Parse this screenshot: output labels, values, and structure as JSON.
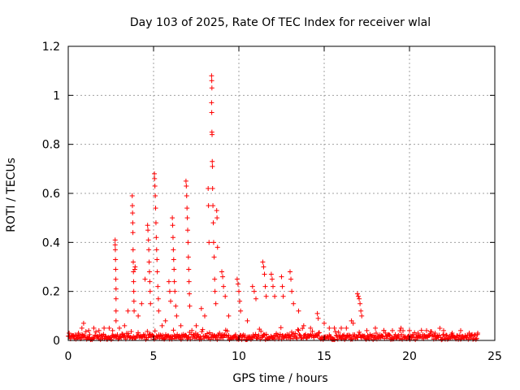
{
  "chart_data": {
    "type": "scatter",
    "title": "Day 103 of 2025, Rate Of TEC Index for receiver wlal",
    "xlabel": "GPS time / hours",
    "ylabel": "ROTI / TECUs",
    "xlim": [
      0,
      25
    ],
    "ylim": [
      0,
      1.2
    ],
    "xticks": [
      0,
      5,
      10,
      15,
      20,
      25
    ],
    "yticks": [
      0,
      0.2,
      0.4,
      0.6,
      0.8,
      1.0,
      1.2
    ],
    "xtick_labels": [
      "0",
      "5",
      "10",
      "15",
      "20",
      "25"
    ],
    "ytick_labels": [
      "0",
      "0.2",
      "0.4",
      "0.6",
      "0.8",
      "1",
      "1.2"
    ],
    "grid": true,
    "marker": "plus",
    "color": "#ff0000",
    "series": [
      {
        "points": [
          [
            0.05,
            0.03
          ],
          [
            0.3,
            0.02
          ],
          [
            0.6,
            0.03
          ],
          [
            0.8,
            0.05
          ],
          [
            0.9,
            0.07
          ],
          [
            1.2,
            0.04
          ],
          [
            1.5,
            0.05
          ],
          [
            1.8,
            0.04
          ],
          [
            2.1,
            0.05
          ],
          [
            2.4,
            0.05
          ],
          [
            2.6,
            0.04
          ],
          [
            2.75,
            0.41
          ],
          [
            2.75,
            0.39
          ],
          [
            2.76,
            0.37
          ],
          [
            2.77,
            0.33
          ],
          [
            2.78,
            0.29
          ],
          [
            2.79,
            0.25
          ],
          [
            2.8,
            0.21
          ],
          [
            2.8,
            0.17
          ],
          [
            2.8,
            0.12
          ],
          [
            2.8,
            0.08
          ],
          [
            3.0,
            0.05
          ],
          [
            3.3,
            0.06
          ],
          [
            3.5,
            0.12
          ],
          [
            3.75,
            0.59
          ],
          [
            3.76,
            0.55
          ],
          [
            3.77,
            0.52
          ],
          [
            3.78,
            0.48
          ],
          [
            3.79,
            0.44
          ],
          [
            3.8,
            0.37
          ],
          [
            3.81,
            0.32
          ],
          [
            3.82,
            0.28
          ],
          [
            3.83,
            0.24
          ],
          [
            3.84,
            0.2
          ],
          [
            3.85,
            0.16
          ],
          [
            3.86,
            0.12
          ],
          [
            3.9,
            0.29
          ],
          [
            3.92,
            0.3
          ],
          [
            4.1,
            0.1
          ],
          [
            4.3,
            0.15
          ],
          [
            4.5,
            0.25
          ],
          [
            4.65,
            0.47
          ],
          [
            4.67,
            0.45
          ],
          [
            4.7,
            0.41
          ],
          [
            4.72,
            0.37
          ],
          [
            4.74,
            0.32
          ],
          [
            4.76,
            0.28
          ],
          [
            4.78,
            0.24
          ],
          [
            4.8,
            0.2
          ],
          [
            4.82,
            0.15
          ],
          [
            5.05,
            0.68
          ],
          [
            5.06,
            0.66
          ],
          [
            5.08,
            0.63
          ],
          [
            5.1,
            0.59
          ],
          [
            5.12,
            0.54
          ],
          [
            5.14,
            0.48
          ],
          [
            5.16,
            0.42
          ],
          [
            5.18,
            0.37
          ],
          [
            5.2,
            0.33
          ],
          [
            5.22,
            0.28
          ],
          [
            5.25,
            0.22
          ],
          [
            5.28,
            0.17
          ],
          [
            5.3,
            0.12
          ],
          [
            5.5,
            0.06
          ],
          [
            5.7,
            0.08
          ],
          [
            5.9,
            0.24
          ],
          [
            5.95,
            0.2
          ],
          [
            6.0,
            0.16
          ],
          [
            6.1,
            0.5
          ],
          [
            6.12,
            0.47
          ],
          [
            6.14,
            0.42
          ],
          [
            6.16,
            0.37
          ],
          [
            6.18,
            0.33
          ],
          [
            6.2,
            0.29
          ],
          [
            6.22,
            0.24
          ],
          [
            6.25,
            0.2
          ],
          [
            6.3,
            0.14
          ],
          [
            6.35,
            0.1
          ],
          [
            6.6,
            0.06
          ],
          [
            6.9,
            0.65
          ],
          [
            6.92,
            0.63
          ],
          [
            6.94,
            0.59
          ],
          [
            6.96,
            0.54
          ],
          [
            6.98,
            0.5
          ],
          [
            7.0,
            0.45
          ],
          [
            7.02,
            0.4
          ],
          [
            7.04,
            0.34
          ],
          [
            7.06,
            0.29
          ],
          [
            7.08,
            0.24
          ],
          [
            7.1,
            0.19
          ],
          [
            7.12,
            0.14
          ],
          [
            7.5,
            0.06
          ],
          [
            7.8,
            0.13
          ],
          [
            8.0,
            0.1
          ],
          [
            8.2,
            0.62
          ],
          [
            8.22,
            0.55
          ],
          [
            8.25,
            0.4
          ],
          [
            8.4,
            1.08
          ],
          [
            8.41,
            1.06
          ],
          [
            8.42,
            1.03
          ],
          [
            8.4,
            0.97
          ],
          [
            8.41,
            0.93
          ],
          [
            8.42,
            0.85
          ],
          [
            8.43,
            0.84
          ],
          [
            8.44,
            0.73
          ],
          [
            8.45,
            0.71
          ],
          [
            8.46,
            0.62
          ],
          [
            8.48,
            0.55
          ],
          [
            8.5,
            0.48
          ],
          [
            8.52,
            0.4
          ],
          [
            8.55,
            0.34
          ],
          [
            8.58,
            0.25
          ],
          [
            8.6,
            0.2
          ],
          [
            8.65,
            0.15
          ],
          [
            8.7,
            0.53
          ],
          [
            8.72,
            0.5
          ],
          [
            8.75,
            0.38
          ],
          [
            9.0,
            0.28
          ],
          [
            9.05,
            0.26
          ],
          [
            9.1,
            0.22
          ],
          [
            9.2,
            0.18
          ],
          [
            9.4,
            0.1
          ],
          [
            9.9,
            0.25
          ],
          [
            9.95,
            0.23
          ],
          [
            10.0,
            0.2
          ],
          [
            10.05,
            0.16
          ],
          [
            10.1,
            0.12
          ],
          [
            10.5,
            0.08
          ],
          [
            10.8,
            0.22
          ],
          [
            10.9,
            0.2
          ],
          [
            11.0,
            0.17
          ],
          [
            11.4,
            0.32
          ],
          [
            11.45,
            0.3
          ],
          [
            11.5,
            0.27
          ],
          [
            11.55,
            0.22
          ],
          [
            11.6,
            0.18
          ],
          [
            11.9,
            0.27
          ],
          [
            11.95,
            0.25
          ],
          [
            12.0,
            0.22
          ],
          [
            12.1,
            0.18
          ],
          [
            12.5,
            0.26
          ],
          [
            12.55,
            0.22
          ],
          [
            12.6,
            0.18
          ],
          [
            13.0,
            0.28
          ],
          [
            13.05,
            0.25
          ],
          [
            13.1,
            0.2
          ],
          [
            13.2,
            0.15
          ],
          [
            13.5,
            0.12
          ],
          [
            13.8,
            0.06
          ],
          [
            14.2,
            0.05
          ],
          [
            14.6,
            0.11
          ],
          [
            14.65,
            0.09
          ],
          [
            15.0,
            0.07
          ],
          [
            15.3,
            0.05
          ],
          [
            15.6,
            0.05
          ],
          [
            16.0,
            0.05
          ],
          [
            16.3,
            0.05
          ],
          [
            16.6,
            0.08
          ],
          [
            16.7,
            0.07
          ],
          [
            16.95,
            0.19
          ],
          [
            17.0,
            0.18
          ],
          [
            17.05,
            0.17
          ],
          [
            17.1,
            0.15
          ],
          [
            17.15,
            0.12
          ],
          [
            17.2,
            0.1
          ],
          [
            17.5,
            0.04
          ],
          [
            18.0,
            0.05
          ],
          [
            18.5,
            0.04
          ],
          [
            19.0,
            0.04
          ],
          [
            19.5,
            0.05
          ],
          [
            20.0,
            0.04
          ],
          [
            20.5,
            0.03
          ],
          [
            21.0,
            0.04
          ],
          [
            21.5,
            0.03
          ],
          [
            22.0,
            0.04
          ],
          [
            22.5,
            0.03
          ],
          [
            23.0,
            0.04
          ],
          [
            23.5,
            0.03
          ],
          [
            24.0,
            0.03
          ]
        ]
      }
    ]
  }
}
